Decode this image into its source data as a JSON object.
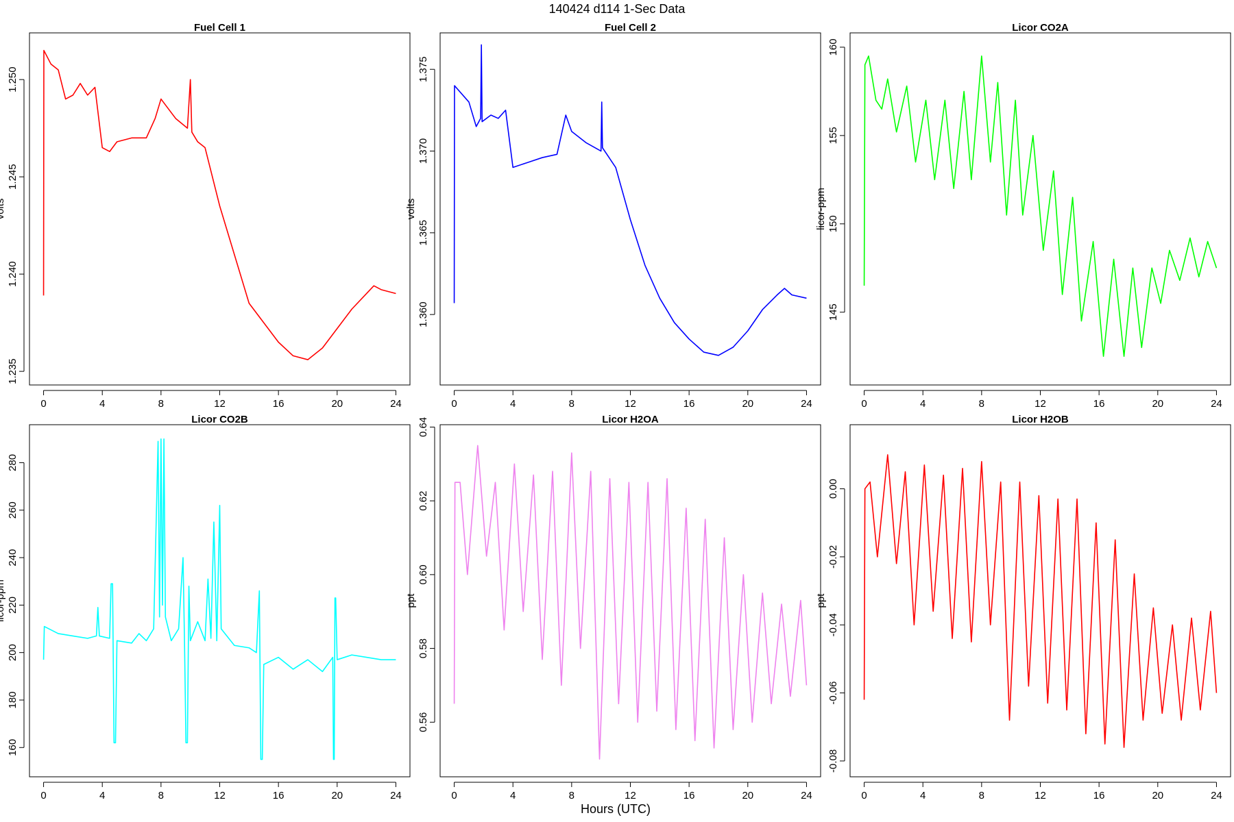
{
  "title": "140424   d114   1-Sec Data",
  "xlabel": "Hours (UTC)",
  "chart_data": [
    {
      "type": "line",
      "title": "Fuel Cell 1",
      "ylabel": "volts",
      "color": "#ff0000",
      "xlim": [
        -0.96,
        24.96
      ],
      "xticks": [
        0,
        4,
        8,
        12,
        16,
        20,
        24
      ],
      "ylim": [
        1.2343,
        1.2524
      ],
      "yticks": [
        1.235,
        {
          "value": 1.24,
          "label": "1.240"
        },
        1.245,
        {
          "value": 1.25,
          "label": "1.250"
        }
      ],
      "x": [
        0,
        0.02,
        0.5,
        1,
        1.5,
        2,
        2.5,
        3,
        3.5,
        4,
        4.5,
        5,
        6,
        7,
        7.6,
        8,
        9,
        9.8,
        10,
        10.1,
        10.5,
        11,
        12,
        13,
        14,
        15,
        16,
        17,
        18,
        19,
        20,
        21,
        22,
        22.5,
        23,
        24
      ],
      "values": [
        1.2389,
        1.2515,
        1.2508,
        1.2505,
        1.249,
        1.2492,
        1.2498,
        1.2492,
        1.2496,
        1.2465,
        1.2463,
        1.2468,
        1.247,
        1.247,
        1.248,
        1.249,
        1.248,
        1.2475,
        1.25,
        1.2473,
        1.2468,
        1.2465,
        1.2435,
        1.241,
        1.2385,
        1.2375,
        1.2365,
        1.2358,
        1.2356,
        1.2362,
        1.2372,
        1.2382,
        1.239,
        1.2394,
        1.2392,
        1.239
      ]
    },
    {
      "type": "line",
      "title": "Fuel Cell 2",
      "ylabel": "volts",
      "color": "#0000ff",
      "xlim": [
        -0.96,
        24.96
      ],
      "xticks": [
        0,
        4,
        8,
        12,
        16,
        20,
        24
      ],
      "ylim": [
        1.35569,
        1.37723
      ],
      "yticks": [
        {
          "value": 1.36,
          "label": "1.360"
        },
        1.365,
        {
          "value": 1.37,
          "label": "1.370"
        },
        1.375
      ],
      "x": [
        0,
        0.02,
        1,
        1.5,
        1.8,
        1.85,
        1.9,
        2.5,
        3,
        3.5,
        4,
        5,
        6,
        7,
        7.6,
        8,
        9,
        10,
        10.05,
        10.1,
        11,
        12,
        13,
        14,
        15,
        16,
        17,
        18,
        19,
        20,
        21,
        22,
        22.5,
        23,
        24
      ],
      "values": [
        1.3607,
        1.374,
        1.373,
        1.3715,
        1.372,
        1.3765,
        1.3718,
        1.3722,
        1.372,
        1.3725,
        1.369,
        1.3693,
        1.3696,
        1.3698,
        1.3722,
        1.3712,
        1.3705,
        1.37,
        1.373,
        1.3702,
        1.369,
        1.3658,
        1.363,
        1.361,
        1.3595,
        1.3585,
        1.3577,
        1.3575,
        1.358,
        1.359,
        1.3603,
        1.3612,
        1.3616,
        1.3612,
        1.361
      ]
    },
    {
      "type": "line",
      "title": "Licor CO2A",
      "ylabel": "licor-ppm",
      "color": "#00ff00",
      "xlim": [
        -0.96,
        24.96
      ],
      "xticks": [
        0,
        4,
        8,
        12,
        16,
        20,
        24
      ],
      "ylim": [
        140.88,
        160.81
      ],
      "yticks": [
        145,
        150,
        155,
        160
      ],
      "x": [
        0,
        0.05,
        0.3,
        0.8,
        1.2,
        1.6,
        2.2,
        2.9,
        3.5,
        4.2,
        4.8,
        5.5,
        6.1,
        6.8,
        7.3,
        8,
        8.6,
        9.1,
        9.7,
        10.3,
        10.8,
        11.5,
        12.2,
        12.9,
        13.5,
        14.2,
        14.8,
        15.6,
        16.3,
        17,
        17.7,
        18.3,
        18.9,
        19.6,
        20.2,
        20.8,
        21.5,
        22.2,
        22.8,
        23.4,
        24
      ],
      "values": [
        146.5,
        159,
        159.5,
        157,
        156.5,
        158.2,
        155.2,
        157.8,
        153.5,
        157,
        152.5,
        157,
        152,
        157.5,
        152.5,
        159.5,
        153.5,
        158,
        150.5,
        157,
        150.5,
        155,
        148.5,
        153,
        146,
        151.5,
        144.5,
        149,
        142.5,
        148,
        142.5,
        147.5,
        143,
        147.5,
        145.5,
        148.5,
        146.8,
        149.2,
        147,
        149,
        147.5
      ]
    },
    {
      "type": "line",
      "title": "Licor CO2B",
      "ylabel": "licor-ppm",
      "color": "#00ffff",
      "xlim": [
        -0.96,
        24.96
      ],
      "xticks": [
        0,
        4,
        8,
        12,
        16,
        20,
        24
      ],
      "ylim": [
        147.67,
        296
      ],
      "yticks": [
        160,
        180,
        200,
        220,
        240,
        260,
        280
      ],
      "x": [
        0,
        0.05,
        1,
        2,
        3,
        3.6,
        3.7,
        3.8,
        4.5,
        4.6,
        4.7,
        4.8,
        4.9,
        5,
        6,
        6.5,
        7,
        7.5,
        7.8,
        7.9,
        8,
        8.1,
        8.2,
        8.3,
        8.7,
        9.2,
        9.5,
        9.6,
        9.7,
        9.8,
        9.9,
        10,
        10.5,
        11,
        11.2,
        11.4,
        11.6,
        11.8,
        12,
        12.1,
        13,
        14,
        14.5,
        14.7,
        14.8,
        14.9,
        15,
        16,
        17,
        18,
        19,
        19.7,
        19.75,
        19.8,
        19.85,
        19.9,
        20,
        21,
        22,
        23,
        24
      ],
      "values": [
        197,
        211,
        208,
        207,
        206,
        207,
        219,
        207,
        206,
        229,
        229,
        162,
        162,
        205,
        204,
        208,
        205,
        210,
        289,
        215,
        290,
        220,
        290,
        215,
        205,
        210,
        240,
        205,
        162,
        162,
        228,
        205,
        213,
        205,
        231,
        206,
        255,
        205,
        262,
        210,
        203,
        202,
        200,
        226,
        155,
        155,
        195,
        198,
        193,
        197,
        192,
        198,
        155,
        155,
        223,
        223,
        197,
        199,
        198,
        197,
        197
      ]
    },
    {
      "type": "line",
      "title": "Licor H2OA",
      "ylabel": "ppt",
      "color": "#ee82ee",
      "xlim": [
        -0.96,
        24.96
      ],
      "xticks": [
        0,
        4,
        8,
        12,
        16,
        20,
        24
      ],
      "ylim": [
        0.5452,
        0.64064
      ],
      "yticks": [
        0.56,
        0.58,
        {
          "value": 0.6,
          "label": "0.60"
        },
        0.62,
        0.64
      ],
      "x": [
        0,
        0.05,
        0.4,
        0.9,
        1.6,
        2.2,
        2.8,
        3.4,
        4.1,
        4.7,
        5.4,
        6,
        6.7,
        7.3,
        8,
        8.6,
        9.3,
        9.9,
        10.6,
        11.2,
        11.9,
        12.5,
        13.2,
        13.8,
        14.5,
        15.1,
        15.8,
        16.4,
        17.1,
        17.7,
        18.4,
        19,
        19.7,
        20.3,
        21,
        21.6,
        22.3,
        22.9,
        23.6,
        24
      ],
      "values": [
        0.565,
        0.625,
        0.625,
        0.6,
        0.635,
        0.605,
        0.625,
        0.585,
        0.63,
        0.59,
        0.627,
        0.577,
        0.628,
        0.57,
        0.633,
        0.58,
        0.628,
        0.55,
        0.626,
        0.565,
        0.625,
        0.56,
        0.625,
        0.563,
        0.626,
        0.558,
        0.618,
        0.555,
        0.615,
        0.553,
        0.61,
        0.558,
        0.6,
        0.56,
        0.595,
        0.565,
        0.592,
        0.567,
        0.593,
        0.57
      ]
    },
    {
      "type": "line",
      "title": "Licor H2OB",
      "ylabel": "ppt",
      "color": "#ff0000",
      "xlim": [
        -0.96,
        24.96
      ],
      "xticks": [
        0,
        4,
        8,
        12,
        16,
        20,
        24
      ],
      "ylim": [
        -0.08465,
        0.01884
      ],
      "yticks": [
        -0.08,
        -0.06,
        -0.04,
        -0.02,
        {
          "value": 0,
          "label": "0.00"
        }
      ],
      "x": [
        0,
        0.05,
        0.4,
        0.9,
        1.6,
        2.2,
        2.8,
        3.4,
        4.1,
        4.7,
        5.4,
        6,
        6.7,
        7.3,
        8,
        8.6,
        9.3,
        9.9,
        10.6,
        11.2,
        11.9,
        12.5,
        13.2,
        13.8,
        14.5,
        15.1,
        15.8,
        16.4,
        17.1,
        17.7,
        18.4,
        19,
        19.7,
        20.3,
        21,
        21.6,
        22.3,
        22.9,
        23.6,
        24
      ],
      "values": [
        -0.062,
        0,
        0.002,
        -0.02,
        0.01,
        -0.022,
        0.005,
        -0.04,
        0.007,
        -0.036,
        0.004,
        -0.044,
        0.006,
        -0.045,
        0.008,
        -0.04,
        0.002,
        -0.068,
        0.002,
        -0.058,
        -0.002,
        -0.063,
        -0.003,
        -0.065,
        -0.003,
        -0.072,
        -0.01,
        -0.075,
        -0.015,
        -0.076,
        -0.025,
        -0.068,
        -0.035,
        -0.066,
        -0.04,
        -0.068,
        -0.038,
        -0.065,
        -0.036,
        -0.06
      ]
    }
  ]
}
